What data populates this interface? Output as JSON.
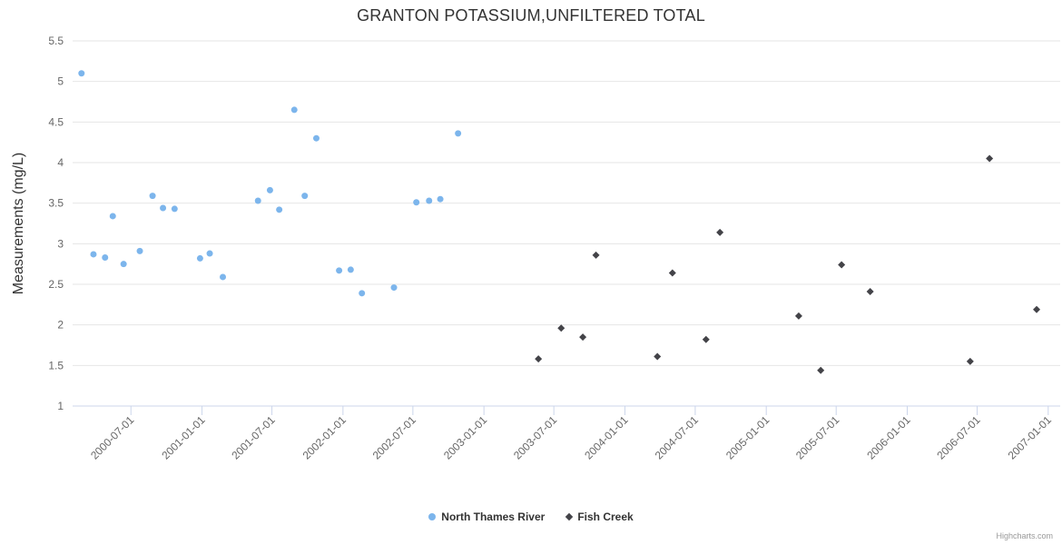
{
  "title": "GRANTON POTASSIUM,UNFILTERED TOTAL",
  "credits_label": "Highcharts.com",
  "chart_data": {
    "type": "scatter",
    "title": "GRANTON POTASSIUM,UNFILTERED TOTAL",
    "xlabel": "",
    "ylabel": "Measurements (mg/L)",
    "ylim": [
      1,
      5.5
    ],
    "y_tick_step": 0.5,
    "y_tick_labels": [
      "1",
      "1.5",
      "2",
      "2.5",
      "3",
      "3.5",
      "4",
      "4.5",
      "5",
      "5.5"
    ],
    "xlim": [
      "2000-02-01",
      "2007-02-01"
    ],
    "x_ticks": [
      "2000-07-01",
      "2001-01-01",
      "2001-07-01",
      "2002-01-01",
      "2002-07-01",
      "2003-01-01",
      "2003-07-01",
      "2004-01-01",
      "2004-07-01",
      "2005-01-01",
      "2005-07-01",
      "2006-01-01",
      "2006-07-01",
      "2007-01-01"
    ],
    "grid": true,
    "legend_position": "bottom",
    "colors": {
      "grid": "#e6e6e6",
      "axis_line": "#ccd6eb",
      "tick_label": "#666666",
      "title_text": "#333333"
    },
    "series": [
      {
        "name": "North Thames River",
        "color": "#7cb5ec",
        "marker": "circle",
        "data": [
          [
            "2000-02-24",
            5.1
          ],
          [
            "2000-03-26",
            2.87
          ],
          [
            "2000-04-25",
            2.83
          ],
          [
            "2000-05-15",
            3.34
          ],
          [
            "2000-06-12",
            2.75
          ],
          [
            "2000-07-24",
            2.91
          ],
          [
            "2000-08-26",
            3.59
          ],
          [
            "2000-09-22",
            3.44
          ],
          [
            "2000-10-22",
            3.43
          ],
          [
            "2000-12-27",
            2.82
          ],
          [
            "2001-01-21",
            2.88
          ],
          [
            "2001-02-24",
            2.59
          ],
          [
            "2001-05-26",
            3.53
          ],
          [
            "2001-06-26",
            3.66
          ],
          [
            "2001-07-20",
            3.42
          ],
          [
            "2001-08-28",
            4.65
          ],
          [
            "2001-09-24",
            3.59
          ],
          [
            "2001-10-24",
            4.3
          ],
          [
            "2001-12-22",
            2.67
          ],
          [
            "2002-01-21",
            2.68
          ],
          [
            "2002-02-19",
            2.39
          ],
          [
            "2002-05-13",
            2.46
          ],
          [
            "2002-07-10",
            3.51
          ],
          [
            "2002-08-12",
            3.53
          ],
          [
            "2002-09-10",
            3.55
          ],
          [
            "2002-10-26",
            4.36
          ]
        ]
      },
      {
        "name": "Fish Creek",
        "color": "#434348",
        "marker": "diamond",
        "data": [
          [
            "2003-05-22",
            1.58
          ],
          [
            "2003-07-20",
            1.96
          ],
          [
            "2003-09-14",
            1.85
          ],
          [
            "2003-10-18",
            2.86
          ],
          [
            "2004-03-25",
            1.61
          ],
          [
            "2004-05-03",
            2.64
          ],
          [
            "2004-07-29",
            1.82
          ],
          [
            "2004-09-03",
            3.14
          ],
          [
            "2005-03-26",
            2.11
          ],
          [
            "2005-05-22",
            1.44
          ],
          [
            "2005-07-15",
            2.74
          ],
          [
            "2005-09-27",
            2.41
          ],
          [
            "2006-06-13",
            1.55
          ],
          [
            "2006-08-02",
            4.05
          ],
          [
            "2006-12-02",
            2.19
          ]
        ]
      }
    ]
  }
}
